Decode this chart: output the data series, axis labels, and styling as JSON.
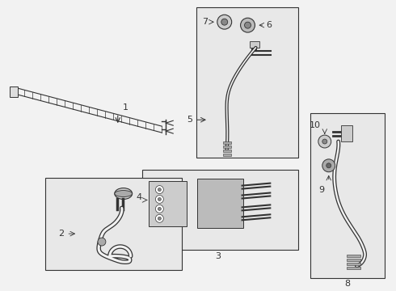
{
  "bg_color": "#f2f2f2",
  "white": "#ffffff",
  "dark": "#333333",
  "box_bg": "#e8e8e8",
  "fig_w": 4.9,
  "fig_h": 3.6,
  "dpi": 100
}
